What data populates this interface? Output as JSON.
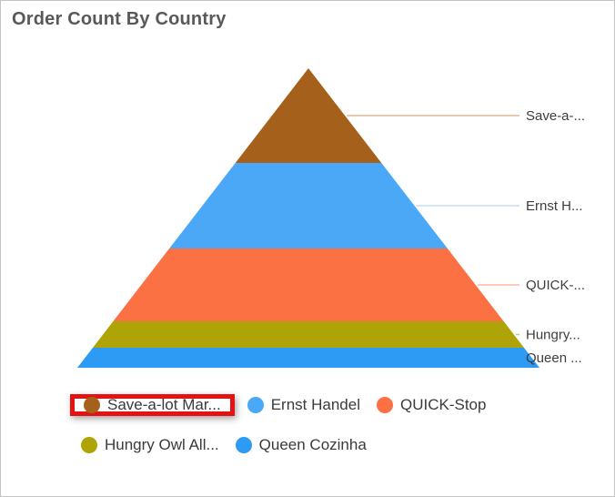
{
  "chart_data": {
    "type": "pyramid",
    "title": "Order Count By Country",
    "legend_position": "bottom",
    "values_visible": false,
    "segments": [
      {
        "legend_label": "Save-a-lot Mar...",
        "data_label": "Save-a-...",
        "color": "#A5611B",
        "leader_line_color": "#DEBC96",
        "height_fraction": 0.316
      },
      {
        "legend_label": "Ernst Handel",
        "data_label": "Ernst H...",
        "color": "#4BA8F7",
        "leader_line_color": "#C6DEF3",
        "height_fraction": 0.286
      },
      {
        "legend_label": "QUICK-Stop",
        "data_label": "QUICK-...",
        "color": "#FB7144",
        "leader_line_color": "#FFB9A0",
        "height_fraction": 0.243
      },
      {
        "legend_label": "Hungry Owl All...",
        "data_label": "Hungry...",
        "color": "#AFA407",
        "leader_line_color": "#D2C878",
        "height_fraction": 0.088
      },
      {
        "legend_label": "Queen Cozinha",
        "data_label": "Queen ...",
        "color": "#2D9AF3",
        "leader_line_color": "#9CCDF8",
        "height_fraction": 0.067
      }
    ],
    "annotation": {
      "type": "highlight-box",
      "target": "legend-item-0",
      "color": "#E31313"
    }
  }
}
